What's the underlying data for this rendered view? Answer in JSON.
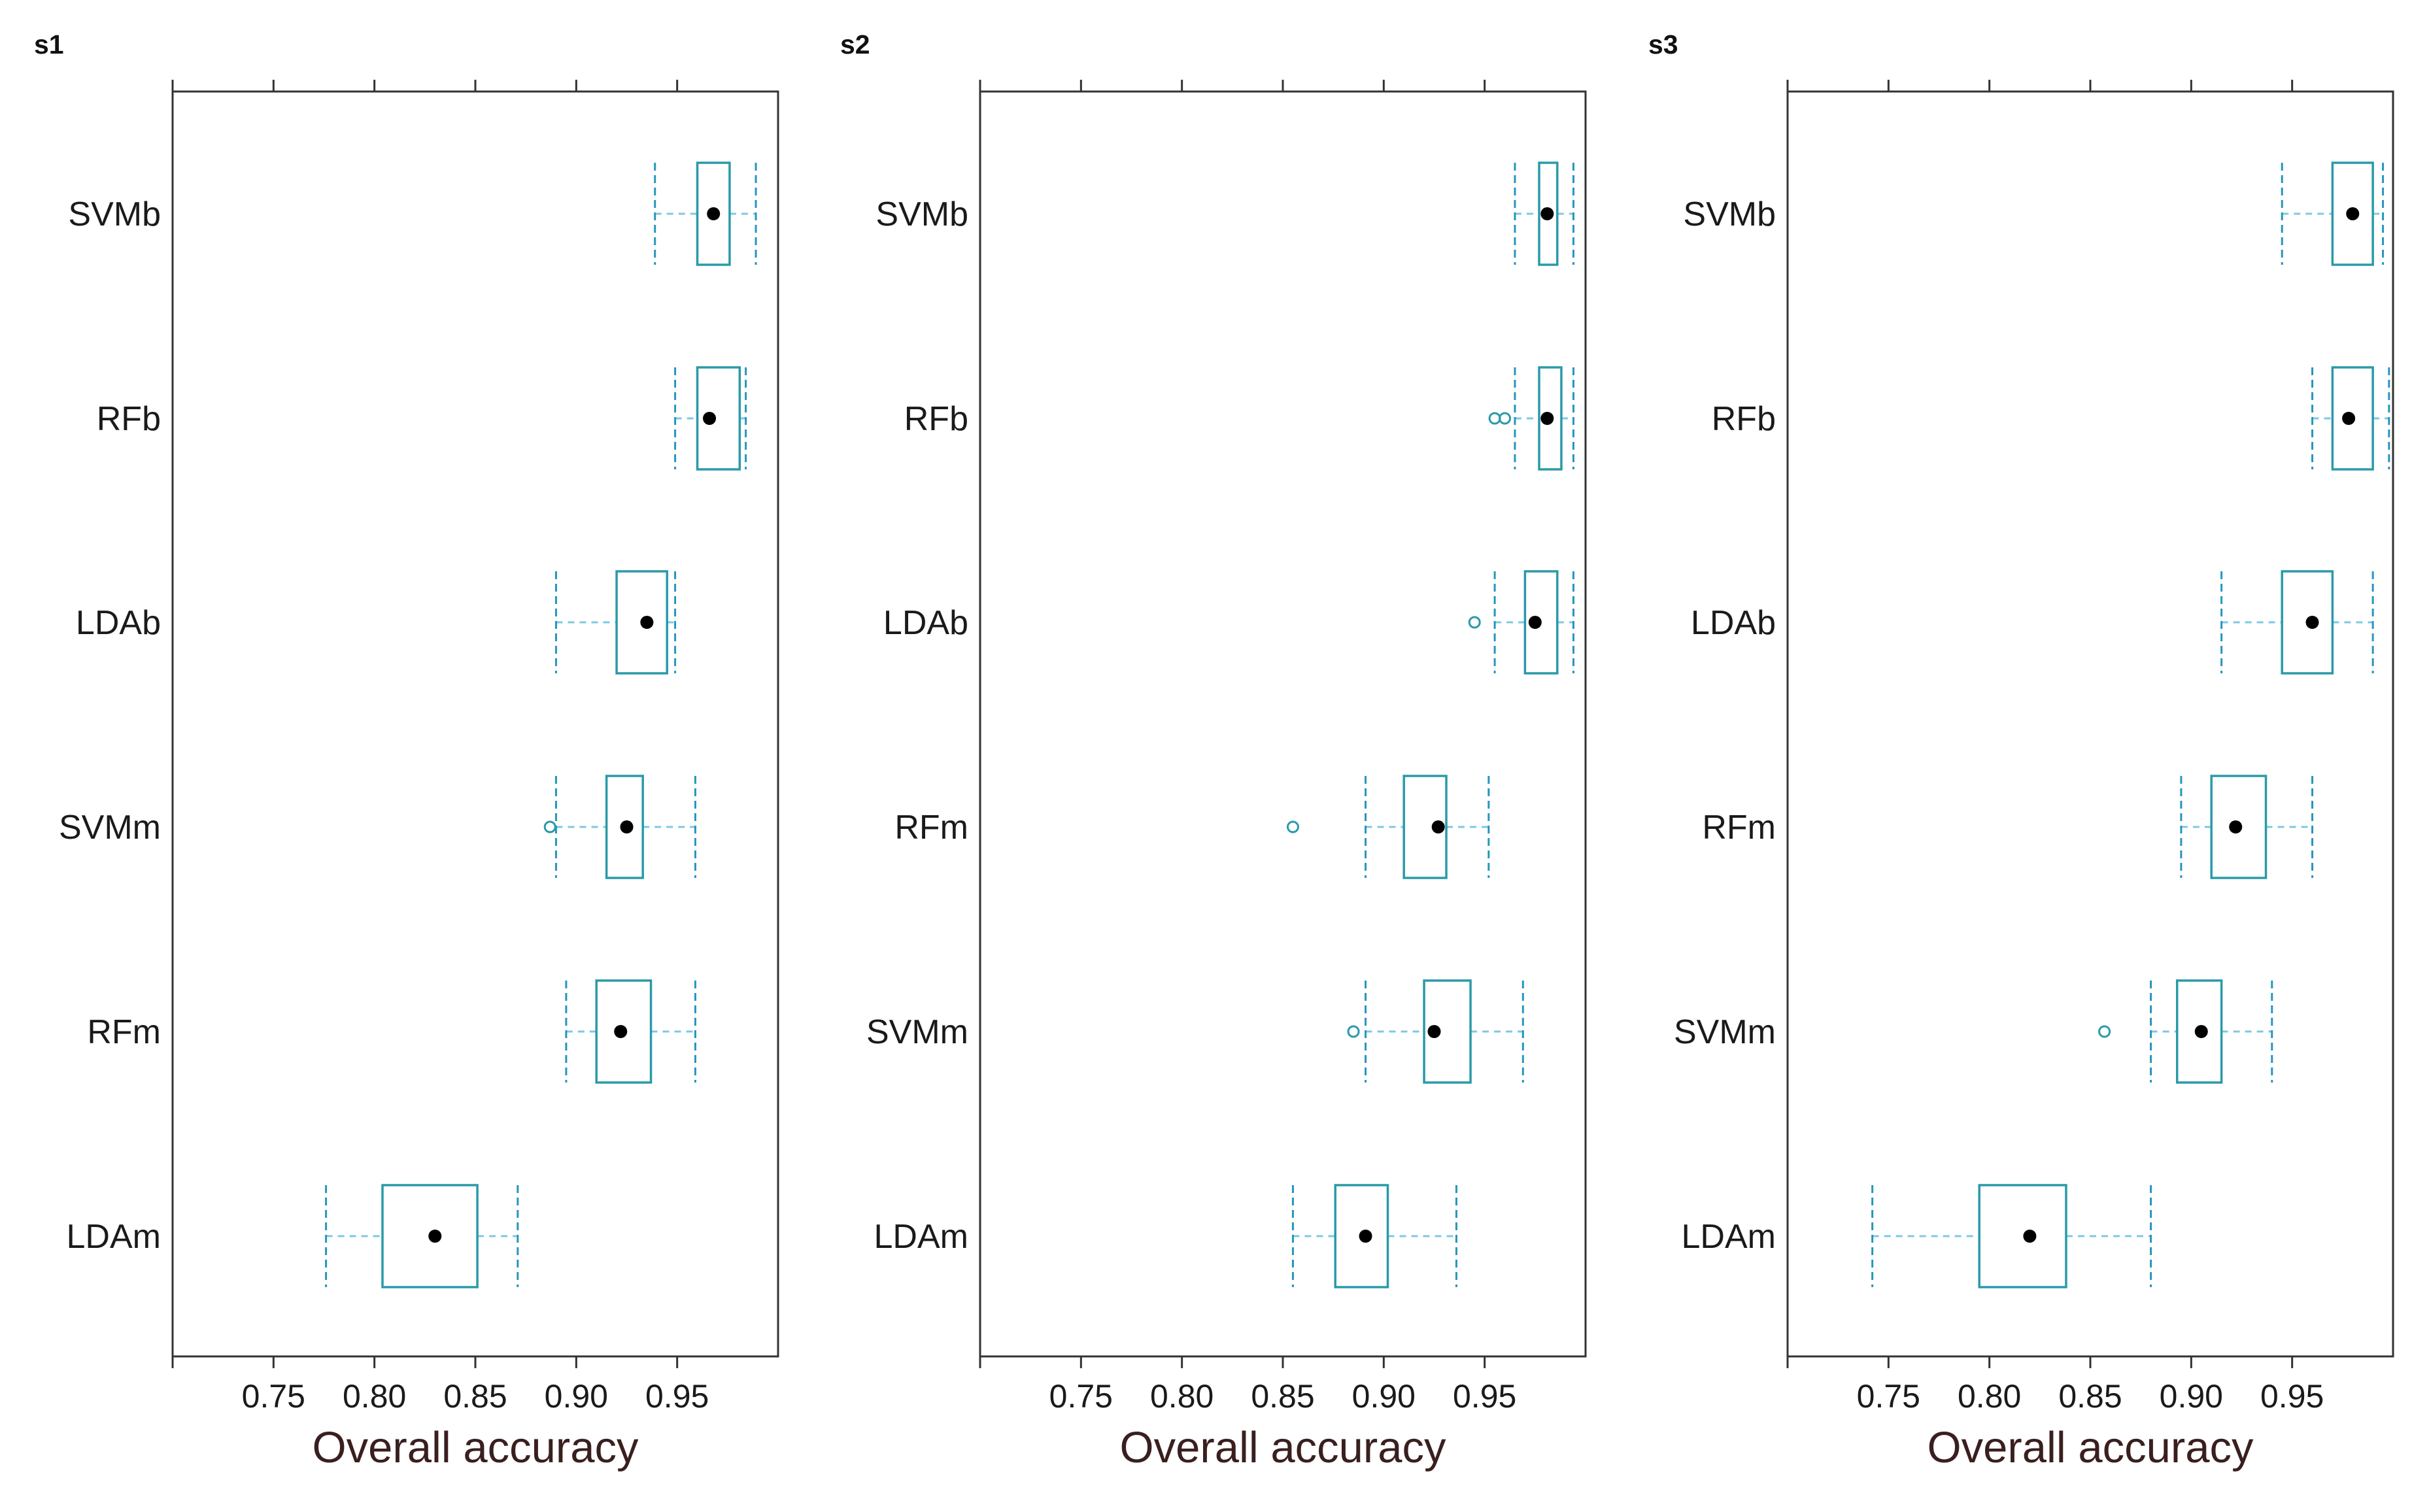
{
  "chart_data": [
    {
      "type": "boxplot",
      "title": "s1",
      "xlabel": "Overall accuracy",
      "ylabel": "",
      "xlim": [
        0.7,
        1.0
      ],
      "ticks": [
        0.75,
        0.8,
        0.85,
        0.9,
        0.95
      ],
      "tick_labels": [
        "0.75",
        "0.80",
        "0.85",
        "0.90",
        "0.95"
      ],
      "categories": [
        "SVMb",
        "RFb",
        "LDAb",
        "SVMm",
        "RFm",
        "LDAm"
      ],
      "boxes": [
        {
          "category": "SVMb",
          "whisker_low": 0.939,
          "q1": 0.96,
          "median": 0.968,
          "q3": 0.976,
          "whisker_high": 0.989,
          "outliers": []
        },
        {
          "category": "RFb",
          "whisker_low": 0.949,
          "q1": 0.96,
          "median": 0.966,
          "q3": 0.981,
          "whisker_high": 0.984,
          "outliers": []
        },
        {
          "category": "LDAb",
          "whisker_low": 0.89,
          "q1": 0.92,
          "median": 0.935,
          "q3": 0.945,
          "whisker_high": 0.949,
          "outliers": []
        },
        {
          "category": "SVMm",
          "whisker_low": 0.89,
          "q1": 0.915,
          "median": 0.925,
          "q3": 0.933,
          "whisker_high": 0.959,
          "outliers": [
            0.887
          ]
        },
        {
          "category": "RFm",
          "whisker_low": 0.895,
          "q1": 0.91,
          "median": 0.922,
          "q3": 0.937,
          "whisker_high": 0.959,
          "outliers": []
        },
        {
          "category": "LDAm",
          "whisker_low": 0.776,
          "q1": 0.804,
          "median": 0.83,
          "q3": 0.851,
          "whisker_high": 0.871,
          "outliers": []
        }
      ]
    },
    {
      "type": "boxplot",
      "title": "s2",
      "xlabel": "Overall accuracy",
      "ylabel": "",
      "xlim": [
        0.7,
        1.0
      ],
      "ticks": [
        0.75,
        0.8,
        0.85,
        0.9,
        0.95
      ],
      "tick_labels": [
        "0.75",
        "0.80",
        "0.85",
        "0.90",
        "0.95"
      ],
      "categories": [
        "SVMb",
        "RFb",
        "LDAb",
        "RFm",
        "SVMm",
        "LDAm"
      ],
      "boxes": [
        {
          "category": "SVMb",
          "whisker_low": 0.965,
          "q1": 0.977,
          "median": 0.981,
          "q3": 0.986,
          "whisker_high": 0.994,
          "outliers": []
        },
        {
          "category": "RFb",
          "whisker_low": 0.965,
          "q1": 0.977,
          "median": 0.981,
          "q3": 0.988,
          "whisker_high": 0.994,
          "outliers": [
            0.955,
            0.96
          ]
        },
        {
          "category": "LDAb",
          "whisker_low": 0.955,
          "q1": 0.97,
          "median": 0.975,
          "q3": 0.986,
          "whisker_high": 0.994,
          "outliers": [
            0.945
          ]
        },
        {
          "category": "RFm",
          "whisker_low": 0.891,
          "q1": 0.91,
          "median": 0.927,
          "q3": 0.931,
          "whisker_high": 0.952,
          "outliers": [
            0.855
          ]
        },
        {
          "category": "SVMm",
          "whisker_low": 0.891,
          "q1": 0.92,
          "median": 0.925,
          "q3": 0.943,
          "whisker_high": 0.969,
          "outliers": [
            0.885
          ]
        },
        {
          "category": "LDAm",
          "whisker_low": 0.855,
          "q1": 0.876,
          "median": 0.891,
          "q3": 0.902,
          "whisker_high": 0.936,
          "outliers": []
        }
      ]
    },
    {
      "type": "boxplot",
      "title": "s3",
      "xlabel": "Overall accuracy",
      "ylabel": "",
      "xlim": [
        0.7,
        1.0
      ],
      "ticks": [
        0.75,
        0.8,
        0.85,
        0.9,
        0.95
      ],
      "tick_labels": [
        "0.75",
        "0.80",
        "0.85",
        "0.90",
        "0.95"
      ],
      "categories": [
        "SVMb",
        "RFb",
        "LDAb",
        "RFm",
        "SVMm",
        "LDAm"
      ],
      "boxes": [
        {
          "category": "SVMb",
          "whisker_low": 0.945,
          "q1": 0.97,
          "median": 0.98,
          "q3": 0.99,
          "whisker_high": 0.995,
          "outliers": []
        },
        {
          "category": "RFb",
          "whisker_low": 0.96,
          "q1": 0.97,
          "median": 0.978,
          "q3": 0.99,
          "whisker_high": 0.998,
          "outliers": []
        },
        {
          "category": "LDAb",
          "whisker_low": 0.915,
          "q1": 0.945,
          "median": 0.96,
          "q3": 0.97,
          "whisker_high": 0.99,
          "outliers": []
        },
        {
          "category": "RFm",
          "whisker_low": 0.895,
          "q1": 0.91,
          "median": 0.922,
          "q3": 0.937,
          "whisker_high": 0.96,
          "outliers": []
        },
        {
          "category": "SVMm",
          "whisker_low": 0.88,
          "q1": 0.893,
          "median": 0.905,
          "q3": 0.915,
          "whisker_high": 0.94,
          "outliers": [
            0.857
          ]
        },
        {
          "category": "LDAm",
          "whisker_low": 0.742,
          "q1": 0.795,
          "median": 0.82,
          "q3": 0.838,
          "whisker_high": 0.88,
          "outliers": []
        }
      ]
    }
  ],
  "colors": {
    "box": "#2a9aa8",
    "whisker": "#2596be",
    "whisker_light": "#7cc9e3",
    "median_dot": "#000000",
    "outlier": "#2a9aa8",
    "frame": "#333333"
  }
}
